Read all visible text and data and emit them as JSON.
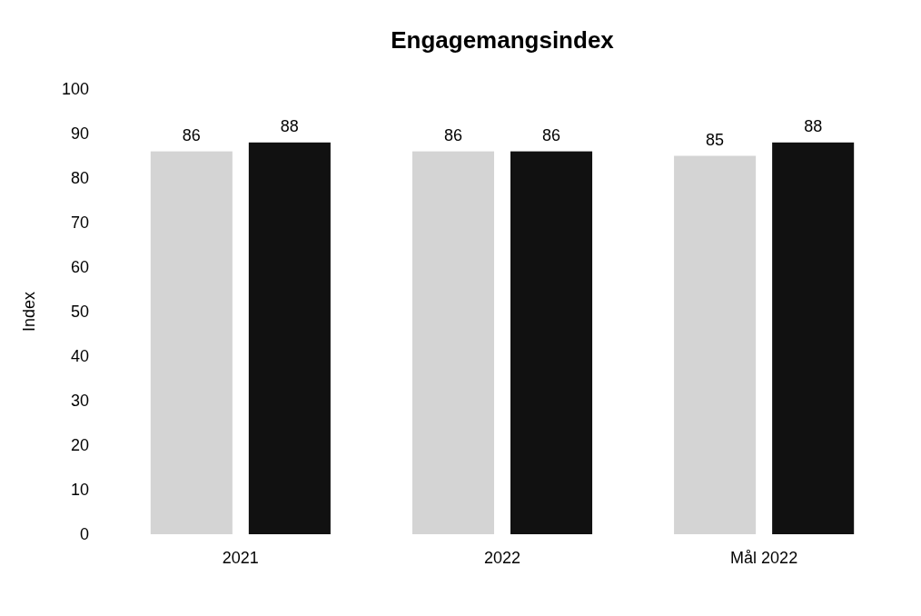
{
  "chart_data": {
    "type": "bar",
    "title": "Engagemangsindex",
    "ylabel": "Index",
    "categories": [
      "2021",
      "2022",
      "Mål 2022"
    ],
    "series": [
      {
        "color": "#d4d4d4",
        "values": [
          86,
          86,
          85
        ]
      },
      {
        "color": "#111111",
        "values": [
          88,
          86,
          88
        ]
      }
    ],
    "ylim": [
      0,
      100
    ],
    "yticks": [
      0,
      10,
      20,
      30,
      40,
      50,
      60,
      70,
      80,
      90,
      100
    ],
    "data_labels": true,
    "grid": false,
    "legend": false
  }
}
